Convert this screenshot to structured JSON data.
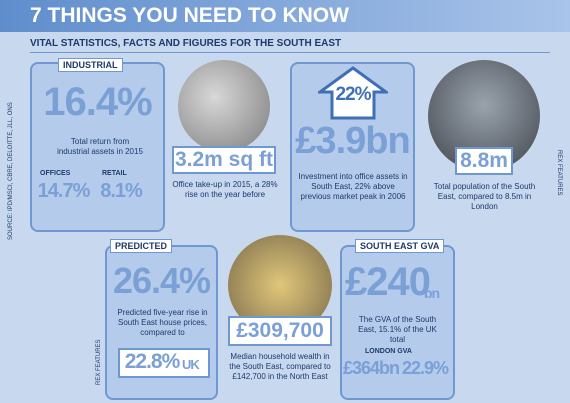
{
  "header": {
    "title": "7 THINGS YOU NEED TO KNOW",
    "subtitle": "VITAL STATISTICS, FACTS AND FIGURES FOR THE SOUTH EAST"
  },
  "source": "SOURCE: IPD/MSCI, CBRE, DELOITTE, JLL, ONS",
  "credits": [
    "REX FEATURES",
    "REX FEATURES"
  ],
  "industrial": {
    "label": "INDUSTRIAL",
    "value": "16.4%",
    "caption": "Total return from industrial assets in 2015",
    "offices_label": "OFFICES",
    "offices_value": "14.7%",
    "retail_label": "RETAIL",
    "retail_value": "8.1%"
  },
  "take_up": {
    "value": "3.2m sq ft",
    "caption": "Office take-up in 2015, a 28% rise on the year before"
  },
  "investment": {
    "arrow": "22%",
    "value": "£3.9bn",
    "caption": "Investment into office assets in South East, 22% above previous market peak in 2006"
  },
  "population": {
    "value": "8.8m",
    "caption": "Total population of the South East, compared to 8.5m in London"
  },
  "predicted": {
    "label": "PREDICTED",
    "value": "26.4%",
    "caption": "Predicted five-year rise in South East house prices, compared to",
    "uk_value": "22.8%",
    "uk_label": "UK"
  },
  "wealth": {
    "value": "£309,700",
    "caption": "Median household wealth in the South East, compared to £142,700 in the North East"
  },
  "gva": {
    "label": "SOUTH EAST GVA",
    "value": "£240",
    "unit": "bn",
    "caption": "The GVA of the South East, 15.1% of the UK total",
    "london_label": "LONDON GVA",
    "london_value": "£364bn",
    "london_share": "22.9%"
  }
}
